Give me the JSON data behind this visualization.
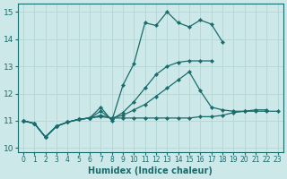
{
  "xlabel": "Humidex (Indice chaleur)",
  "bg_color": "#cde8e8",
  "line_color": "#1a6b6b",
  "grid_color": "#b8d8d8",
  "xlim": [
    -0.5,
    23.5
  ],
  "ylim": [
    9.85,
    15.3
  ],
  "xticks": [
    0,
    1,
    2,
    3,
    4,
    5,
    6,
    7,
    8,
    9,
    10,
    11,
    12,
    13,
    14,
    15,
    16,
    17,
    18,
    19,
    20,
    21,
    22,
    23
  ],
  "yticks": [
    10,
    11,
    12,
    13,
    14,
    15
  ],
  "series": [
    {
      "x": [
        0,
        1,
        2,
        3,
        4,
        5,
        6,
        7,
        8,
        9,
        10,
        11,
        12,
        13,
        14,
        15,
        16,
        17,
        18
      ],
      "y": [
        11.0,
        10.9,
        10.4,
        10.8,
        10.95,
        11.05,
        11.1,
        11.5,
        11.0,
        12.3,
        13.1,
        14.6,
        14.5,
        15.0,
        14.6,
        14.45,
        14.7,
        14.55,
        13.9
      ]
    },
    {
      "x": [
        0,
        1,
        2,
        3,
        4,
        5,
        6,
        7,
        8,
        9,
        10,
        11,
        12,
        13,
        14,
        15,
        16,
        17
      ],
      "y": [
        11.0,
        10.9,
        10.4,
        10.8,
        10.95,
        11.05,
        11.1,
        11.35,
        11.05,
        11.3,
        11.7,
        12.2,
        12.7,
        13.0,
        13.15,
        13.2,
        13.2,
        13.2
      ]
    },
    {
      "x": [
        0,
        1,
        2,
        3,
        4,
        5,
        6,
        7,
        8,
        9,
        10,
        11,
        12,
        13,
        14,
        15,
        16,
        17,
        18,
        19,
        20,
        21,
        22
      ],
      "y": [
        11.0,
        10.9,
        10.4,
        10.8,
        10.95,
        11.05,
        11.1,
        11.2,
        11.1,
        11.2,
        11.4,
        11.6,
        11.9,
        12.2,
        12.5,
        12.8,
        12.1,
        11.5,
        11.4,
        11.35,
        11.35,
        11.4,
        11.4
      ]
    },
    {
      "x": [
        0,
        1,
        2,
        3,
        4,
        5,
        6,
        7,
        8,
        9,
        10,
        11,
        12,
        13,
        14,
        15,
        16,
        17,
        18,
        19,
        20,
        21,
        22,
        23
      ],
      "y": [
        11.0,
        10.9,
        10.4,
        10.8,
        10.95,
        11.05,
        11.1,
        11.15,
        11.1,
        11.1,
        11.1,
        11.1,
        11.1,
        11.1,
        11.1,
        11.1,
        11.15,
        11.15,
        11.2,
        11.3,
        11.35,
        11.35,
        11.35,
        11.35
      ]
    }
  ]
}
